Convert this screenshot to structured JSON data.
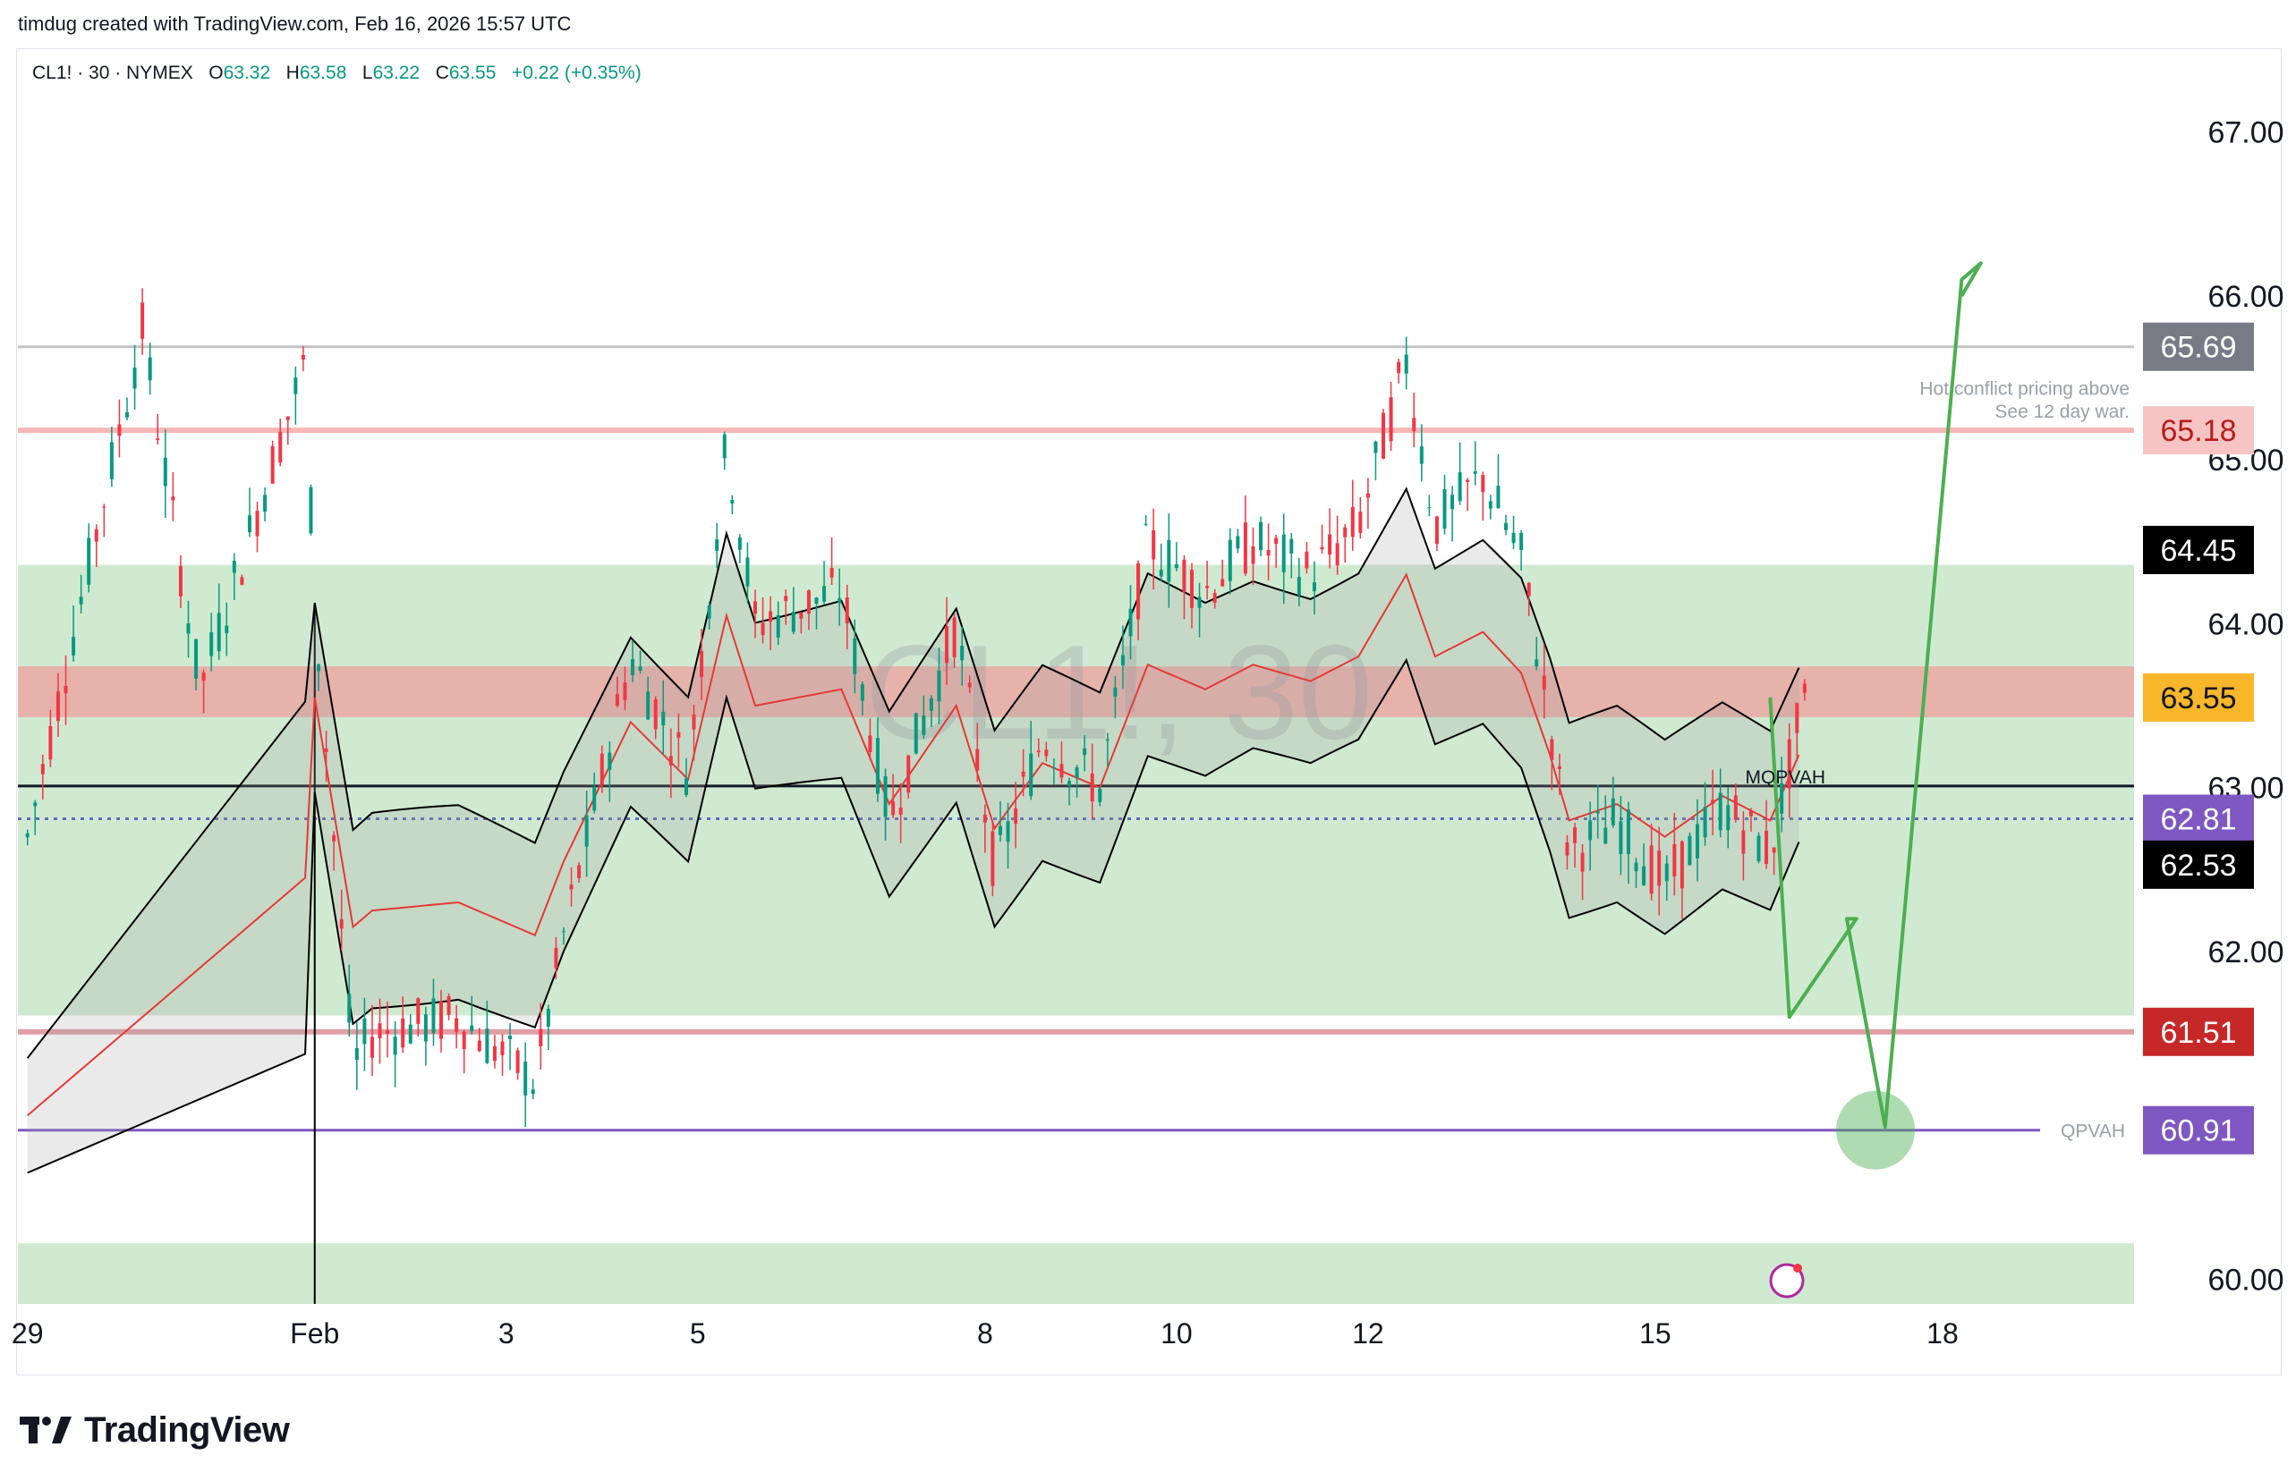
{
  "header": {
    "attribution": "timdug created with TradingView.com, Feb 16, 2026 15:57 UTC"
  },
  "legend": {
    "symbol": "CL1! · 30 · NYMEX",
    "o_label": "O",
    "o": "63.32",
    "h_label": "H",
    "h": "63.58",
    "l_label": "L",
    "l": "63.22",
    "c_label": "C",
    "c": "63.55",
    "change": "+0.22 (+0.35%)"
  },
  "watermark": "CL1!, 30",
  "footer": {
    "brand": "TradingView"
  },
  "colors": {
    "up": "#089981",
    "down": "#f23645",
    "green_arrow": "#4caf50",
    "value_area": "#c8e6c9",
    "resistance_band": "#f4b4b4",
    "purple": "#7e57c2",
    "orange": "#f9a825"
  },
  "chart_data": {
    "type": "candlestick",
    "symbol": "CL1!",
    "interval": "30",
    "exchange": "NYMEX",
    "ylim": [
      59.85,
      67.5
    ],
    "y_ticks": [
      "67.00",
      "66.00",
      "65.00",
      "64.00",
      "63.00",
      "62.00",
      "60.00"
    ],
    "x_ticks": [
      "29",
      "Feb",
      "3",
      "5",
      "8",
      "10",
      "12",
      "15",
      "18"
    ],
    "x_tick_days": [
      29,
      32,
      34,
      36,
      39,
      41,
      43,
      46,
      49
    ],
    "price_labels": [
      {
        "value": "65.69",
        "bg": "#787b86",
        "fg": "#ffffff"
      },
      {
        "value": "65.18",
        "bg": "#f7c4c4",
        "fg": "#b71c1c"
      },
      {
        "value": "64.45",
        "bg": "#000000",
        "fg": "#ffffff"
      },
      {
        "value": "63.55",
        "bg": "#f9b62a",
        "fg": "#131722"
      },
      {
        "value": "62.81",
        "bg": "#7e57c2",
        "fg": "#ffffff"
      },
      {
        "value": "62.53",
        "bg": "#000000",
        "fg": "#ffffff"
      },
      {
        "value": "61.51",
        "bg": "#c62828",
        "fg": "#ffffff"
      },
      {
        "value": "60.91",
        "bg": "#7e57c2",
        "fg": "#ffffff"
      }
    ],
    "horizontal_levels": [
      {
        "value": 65.69,
        "color": "#c4c4c4"
      },
      {
        "value": 65.18,
        "color": "#f7b7b7"
      },
      {
        "value": 63.01,
        "color": "#131722"
      },
      {
        "value": 62.81,
        "color": "#5c6bc0"
      },
      {
        "value": 61.51,
        "color": "#e09ea4"
      },
      {
        "value": 60.91,
        "color": "#7e57c2"
      }
    ],
    "zones": [
      {
        "from": 61.61,
        "to": 64.36,
        "color": "#c8e6c9"
      },
      {
        "from": 63.43,
        "to": 63.74,
        "color": "#ef9a9a"
      },
      {
        "from": 59.85,
        "to": 60.22,
        "color": "#c8e6c9"
      }
    ],
    "annotations": [
      {
        "text": "Hot conflict pricing above",
        "price": 65.44
      },
      {
        "text": "See 12 day war.",
        "price": 65.3
      },
      {
        "text": "MQPVAH",
        "price": 63.07
      },
      {
        "text": "QPVAH",
        "price": 60.91
      }
    ],
    "forecast_path": {
      "description": "projected path drawn by author",
      "days": [
        47.2,
        47.4,
        48.1,
        48.0,
        48.4,
        49.2,
        49.4,
        49.2
      ],
      "prices": [
        63.55,
        61.6,
        62.2,
        62.2,
        60.93,
        66.1,
        66.2,
        66.0
      ]
    },
    "target_circle": {
      "day": 48.3,
      "price": 60.91
    },
    "key_points": [
      {
        "day": 29.0,
        "price": 62.7
      },
      {
        "day": 30.2,
        "price": 65.8
      },
      {
        "day": 30.8,
        "price": 63.6
      },
      {
        "day": 31.9,
        "price": 65.6
      },
      {
        "day": 32.0,
        "price": 64.1
      },
      {
        "day": 32.4,
        "price": 61.3
      },
      {
        "day": 32.6,
        "price": 61.5
      },
      {
        "day": 33.5,
        "price": 61.6
      },
      {
        "day": 34.3,
        "price": 61.2
      },
      {
        "day": 34.6,
        "price": 62.1
      },
      {
        "day": 35.3,
        "price": 63.8
      },
      {
        "day": 35.9,
        "price": 63.1
      },
      {
        "day": 36.3,
        "price": 65.1
      },
      {
        "day": 36.6,
        "price": 64.0
      },
      {
        "day": 37.5,
        "price": 64.2
      },
      {
        "day": 38.0,
        "price": 62.8
      },
      {
        "day": 38.7,
        "price": 64.0
      },
      {
        "day": 39.1,
        "price": 62.5
      },
      {
        "day": 39.6,
        "price": 63.3
      },
      {
        "day": 40.2,
        "price": 63.0
      },
      {
        "day": 40.7,
        "price": 64.5
      },
      {
        "day": 41.3,
        "price": 64.2
      },
      {
        "day": 41.8,
        "price": 64.5
      },
      {
        "day": 42.4,
        "price": 64.3
      },
      {
        "day": 42.9,
        "price": 64.6
      },
      {
        "day": 43.4,
        "price": 65.6
      },
      {
        "day": 43.7,
        "price": 64.6
      },
      {
        "day": 44.2,
        "price": 64.9
      },
      {
        "day": 44.6,
        "price": 64.4
      },
      {
        "day": 44.9,
        "price": 63.4
      },
      {
        "day": 45.1,
        "price": 62.6
      },
      {
        "day": 45.6,
        "price": 62.8
      },
      {
        "day": 46.1,
        "price": 62.4
      },
      {
        "day": 46.7,
        "price": 62.9
      },
      {
        "day": 47.2,
        "price": 62.6
      },
      {
        "day": 47.5,
        "price": 63.4
      },
      {
        "day": 47.6,
        "price": 63.55
      }
    ]
  }
}
